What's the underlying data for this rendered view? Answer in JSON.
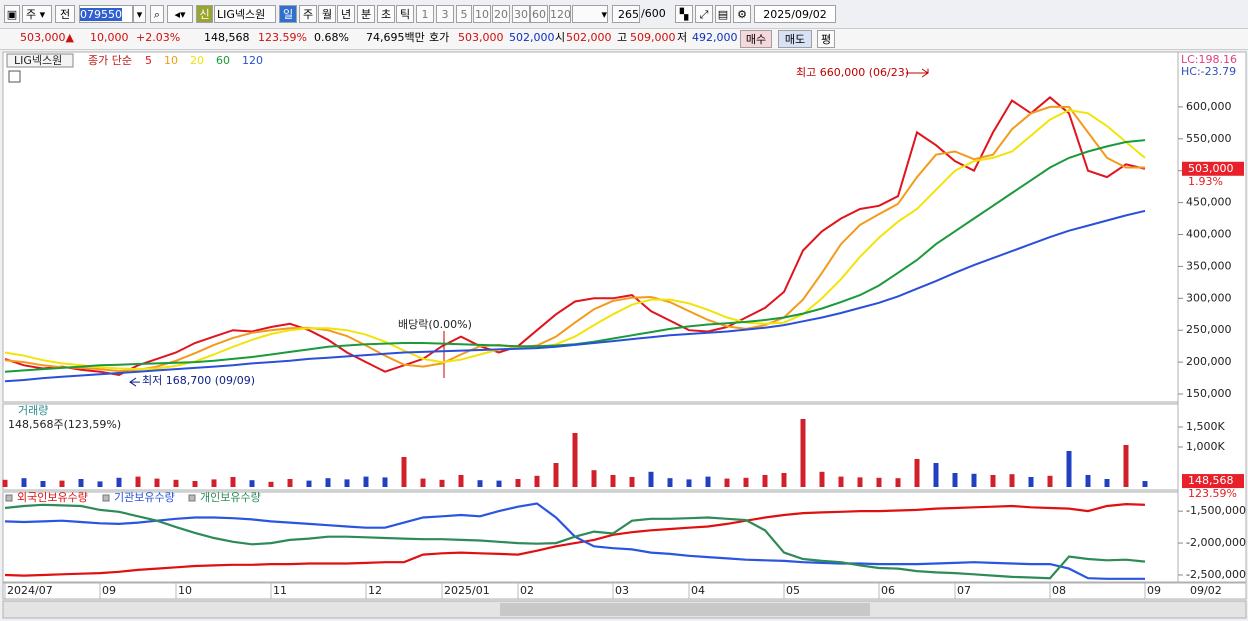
{
  "toolbar": {
    "period": "주",
    "prev": "전",
    "code": "079550",
    "badge": "신",
    "name": "LIG넥스원",
    "units": [
      "일",
      "주",
      "월",
      "년",
      "분",
      "초",
      "틱"
    ],
    "intervals": [
      "1",
      "3",
      "5",
      "10",
      "20",
      "30",
      "60",
      "120"
    ],
    "count": "265",
    "max": "/600",
    "date": "2025/09/02"
  },
  "quote": {
    "price": "503,000▲",
    "change": "10,000",
    "rate": "+2.03%",
    "volume": "148,568",
    "volume_rate": "123.59%",
    "turnover": "0.68%",
    "amount": "74,695백만",
    "ask_label": "호가",
    "ask": "503,000",
    "bid": "502,000",
    "open_label": "시",
    "open": "502,000",
    "high_label": "고",
    "high": "509,000",
    "low_label": "저",
    "low": "492,000",
    "buy": "매수",
    "sell": "매도",
    "avg": "평"
  },
  "chart_data": [
    {
      "type": "line",
      "legend_label": "LIG넥스원",
      "legend_prefix": "종가 단순",
      "lc_label": "LC:198.16",
      "hc_label": "HC:-23.79",
      "x_current_label": "09/02",
      "categories": [
        "2024/07",
        null,
        null,
        null,
        null,
        "09",
        null,
        null,
        null,
        "10",
        null,
        null,
        null,
        null,
        "11",
        null,
        null,
        null,
        null,
        "12",
        null,
        null,
        null,
        "2025/01",
        null,
        null,
        null,
        "02",
        null,
        null,
        null,
        null,
        "03",
        null,
        null,
        null,
        "04",
        null,
        null,
        null,
        null,
        "05",
        null,
        null,
        null,
        null,
        "06",
        null,
        null,
        null,
        "07",
        null,
        null,
        null,
        null,
        "08",
        null,
        null,
        null,
        null,
        "09"
      ],
      "ylim": [
        137500,
        686000
      ],
      "yticks": [
        {
          "value": 600000,
          "label": "600,000"
        },
        {
          "value": 550000,
          "label": "550,000"
        },
        {
          "value": 500000,
          "label": "500,000"
        },
        {
          "value": 450000,
          "label": "450,000"
        },
        {
          "value": 400000,
          "label": "400,000"
        },
        {
          "value": 350000,
          "label": "350,000"
        },
        {
          "value": 300000,
          "label": "300,000"
        },
        {
          "value": 250000,
          "label": "250,000"
        },
        {
          "value": 200000,
          "label": "200,000"
        },
        {
          "value": 150000,
          "label": "150,000"
        }
      ],
      "last": {
        "value": 503000,
        "label": "503,000",
        "change": "1.93%"
      },
      "annotations": [
        {
          "text": "최고 660,000 (06/23)",
          "value": 660000
        },
        {
          "text": "최저 168,700 (09/09)",
          "value": 168700
        },
        {
          "text": "배당락(0.00%)"
        }
      ],
      "series": [
        {
          "name": "5",
          "color": "#e0141e",
          "values": [
            205000,
            195000,
            190000,
            193000,
            188000,
            185000,
            180000,
            195000,
            205000,
            215000,
            230000,
            240000,
            250000,
            248000,
            255000,
            260000,
            250000,
            235000,
            215000,
            200000,
            185000,
            195000,
            205000,
            225000,
            240000,
            225000,
            215000,
            225000,
            250000,
            275000,
            295000,
            300000,
            300000,
            305000,
            280000,
            265000,
            250000,
            248000,
            255000,
            270000,
            285000,
            310000,
            375000,
            405000,
            425000,
            440000,
            445000,
            460000,
            560000,
            540000,
            515000,
            500000,
            560000,
            610000,
            590000,
            615000,
            590000,
            500000,
            490000,
            510000,
            503000
          ]
        },
        {
          "name": "10",
          "color": "#f39a1c",
          "values": [
            203000,
            200000,
            195000,
            192000,
            191000,
            189000,
            186000,
            188000,
            193000,
            202000,
            214000,
            227000,
            238000,
            246000,
            250000,
            253000,
            254000,
            250000,
            241000,
            226000,
            210000,
            196000,
            193000,
            198000,
            212000,
            225000,
            227000,
            223000,
            226000,
            240000,
            262000,
            283000,
            296000,
            301000,
            302000,
            294000,
            280000,
            266000,
            256000,
            252000,
            258000,
            270000,
            298000,
            340000,
            385000,
            415000,
            432000,
            448000,
            490000,
            525000,
            530000,
            518000,
            525000,
            565000,
            590000,
            600000,
            600000,
            560000,
            520000,
            505000,
            505000
          ]
        },
        {
          "name": "20",
          "color": "#f2e40a",
          "values": [
            215000,
            210000,
            203000,
            198000,
            195000,
            192000,
            190000,
            189000,
            190000,
            194000,
            201000,
            212000,
            224000,
            235000,
            244000,
            250000,
            253000,
            253000,
            250000,
            243000,
            232000,
            218000,
            205000,
            200000,
            204000,
            212000,
            220000,
            222000,
            222000,
            228000,
            240000,
            258000,
            275000,
            290000,
            298000,
            298000,
            292000,
            282000,
            270000,
            262000,
            260000,
            262000,
            275000,
            300000,
            330000,
            365000,
            395000,
            420000,
            440000,
            470000,
            500000,
            515000,
            520000,
            530000,
            555000,
            580000,
            595000,
            590000,
            570000,
            545000,
            520000
          ]
        },
        {
          "name": "60",
          "color": "#1a9a3a",
          "values": [
            185000,
            187000,
            189000,
            191000,
            193000,
            195000,
            196000,
            197000,
            198000,
            199000,
            200000,
            202000,
            205000,
            208000,
            212000,
            216000,
            220000,
            224000,
            226000,
            228000,
            229000,
            230000,
            230000,
            229000,
            228000,
            227000,
            226000,
            225000,
            225000,
            226000,
            228000,
            232000,
            237000,
            242000,
            247000,
            252000,
            256000,
            259000,
            261000,
            263000,
            266000,
            270000,
            276000,
            284000,
            294000,
            305000,
            320000,
            340000,
            360000,
            385000,
            405000,
            425000,
            445000,
            465000,
            485000,
            505000,
            520000,
            530000,
            538000,
            545000,
            548000
          ]
        },
        {
          "name": "120",
          "color": "#2a4fd8",
          "values": [
            170000,
            172000,
            175000,
            177000,
            179000,
            181000,
            183000,
            185000,
            187000,
            189000,
            191000,
            193000,
            195000,
            198000,
            200000,
            202000,
            205000,
            207000,
            209000,
            211000,
            213000,
            215000,
            216000,
            217000,
            218000,
            219000,
            220000,
            221000,
            222000,
            224000,
            227000,
            230000,
            233000,
            236000,
            239000,
            242000,
            244000,
            246000,
            248000,
            251000,
            254000,
            258000,
            264000,
            270000,
            277000,
            285000,
            293000,
            303000,
            315000,
            327000,
            340000,
            352000,
            363000,
            374000,
            385000,
            396000,
            406000,
            414000,
            422000,
            430000,
            437000
          ]
        }
      ]
    },
    {
      "type": "bar",
      "subtitle": "148,568주(123,59%)",
      "up_color": "#d0202a",
      "down_color": "#2040c0",
      "ylim": [
        0,
        2075000
      ],
      "yticks": [
        {
          "value": 1500000,
          "label": "1,500K"
        },
        {
          "value": 1000000,
          "label": "1,000K"
        }
      ],
      "last": {
        "value": 148568,
        "label": "148,568",
        "change": "123.59%"
      },
      "series": [
        {
          "name": "거래량",
          "color": "#2a8a8a",
          "values": [
            180000,
            220000,
            150000,
            160000,
            200000,
            140000,
            230000,
            260000,
            210000,
            180000,
            150000,
            190000,
            250000,
            170000,
            130000,
            200000,
            160000,
            220000,
            190000,
            260000,
            240000,
            750000,
            210000,
            180000,
            300000,
            170000,
            160000,
            200000,
            280000,
            600000,
            1350000,
            420000,
            300000,
            250000,
            380000,
            220000,
            190000,
            260000,
            210000,
            230000,
            300000,
            350000,
            1700000,
            380000,
            260000,
            240000,
            230000,
            220000,
            700000,
            600000,
            350000,
            330000,
            300000,
            320000,
            250000,
            280000,
            900000,
            300000,
            200000,
            1050000,
            148568
          ]
        }
      ]
    },
    {
      "type": "line",
      "ylim": [
        -2610000,
        -1200000
      ],
      "yticks": [
        {
          "value": -1500000,
          "label": "-1,500,000"
        },
        {
          "value": -2000000,
          "label": "-2,000,000"
        },
        {
          "value": -2500000,
          "label": "-2,500,000"
        }
      ],
      "series": [
        {
          "name": "외국인보유수량",
          "color": "#e01010",
          "values": [
            -2500000,
            -2510000,
            -2500000,
            -2490000,
            -2480000,
            -2470000,
            -2450000,
            -2420000,
            -2400000,
            -2380000,
            -2360000,
            -2350000,
            -2340000,
            -2340000,
            -2330000,
            -2330000,
            -2320000,
            -2320000,
            -2320000,
            -2310000,
            -2300000,
            -2300000,
            -2180000,
            -2160000,
            -2150000,
            -2160000,
            -2170000,
            -2180000,
            -2120000,
            -2050000,
            -2000000,
            -1950000,
            -1870000,
            -1830000,
            -1800000,
            -1780000,
            -1760000,
            -1740000,
            -1700000,
            -1650000,
            -1600000,
            -1560000,
            -1530000,
            -1520000,
            -1510000,
            -1500000,
            -1500000,
            -1490000,
            -1480000,
            -1460000,
            -1450000,
            -1440000,
            -1430000,
            -1420000,
            -1440000,
            -1450000,
            -1460000,
            -1500000,
            -1420000,
            -1390000,
            -1400000
          ]
        },
        {
          "name": "기관보유수량",
          "color": "#2a55e0",
          "values": [
            -1660000,
            -1670000,
            -1660000,
            -1650000,
            -1670000,
            -1690000,
            -1700000,
            -1680000,
            -1650000,
            -1620000,
            -1600000,
            -1600000,
            -1610000,
            -1630000,
            -1660000,
            -1680000,
            -1700000,
            -1720000,
            -1740000,
            -1760000,
            -1760000,
            -1680000,
            -1600000,
            -1580000,
            -1560000,
            -1580000,
            -1500000,
            -1430000,
            -1380000,
            -1600000,
            -1900000,
            -2050000,
            -2080000,
            -2100000,
            -2150000,
            -2170000,
            -2200000,
            -2220000,
            -2240000,
            -2260000,
            -2270000,
            -2280000,
            -2300000,
            -2310000,
            -2320000,
            -2320000,
            -2330000,
            -2330000,
            -2330000,
            -2320000,
            -2310000,
            -2300000,
            -2310000,
            -2320000,
            -2330000,
            -2330000,
            -2400000,
            -2550000,
            -2560000,
            -2560000,
            -2560000
          ]
        },
        {
          "name": "개인보유수량",
          "color": "#2e8b57",
          "values": [
            -1450000,
            -1420000,
            -1400000,
            -1410000,
            -1420000,
            -1480000,
            -1510000,
            -1580000,
            -1650000,
            -1750000,
            -1840000,
            -1920000,
            -1980000,
            -2020000,
            -2000000,
            -1950000,
            -1930000,
            -1900000,
            -1900000,
            -1910000,
            -1920000,
            -1930000,
            -1940000,
            -1940000,
            -1950000,
            -1960000,
            -1980000,
            -2000000,
            -2010000,
            -2000000,
            -1900000,
            -1820000,
            -1850000,
            -1650000,
            -1620000,
            -1620000,
            -1610000,
            -1600000,
            -1620000,
            -1640000,
            -1800000,
            -2150000,
            -2250000,
            -2280000,
            -2300000,
            -2350000,
            -2390000,
            -2400000,
            -2440000,
            -2460000,
            -2470000,
            -2490000,
            -2510000,
            -2530000,
            -2540000,
            -2550000,
            -2210000,
            -2250000,
            -2270000,
            -2260000,
            -2290000
          ]
        }
      ]
    }
  ]
}
